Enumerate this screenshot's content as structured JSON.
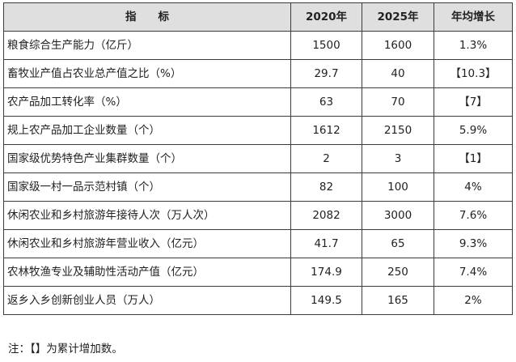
{
  "table": {
    "headers": [
      "指　　标",
      "2020年",
      "2025年",
      "年均增长"
    ],
    "rows": [
      [
        "粮食综合生产能力（亿斤）",
        "1500",
        "1600",
        "1.3%"
      ],
      [
        "畜牧业产值占农业总产值之比（%）",
        "29.7",
        "40",
        "【10.3】"
      ],
      [
        "农产品加工转化率（%）",
        "63",
        "70",
        "【7】"
      ],
      [
        "规上农产品加工企业数量（个）",
        "1612",
        "2150",
        "5.9%"
      ],
      [
        "国家级优势特色产业集群数量（个）",
        "2",
        "3",
        "【1】"
      ],
      [
        "国家级一村一品示范村镇（个）",
        "82",
        "100",
        "4%"
      ],
      [
        "休闲农业和乡村旅游年接待人次（万人次）",
        "2082",
        "3000",
        "7.6%"
      ],
      [
        "休闲农业和乡村旅游年营业收入（亿元）",
        "41.7",
        "65",
        "9.3%"
      ],
      [
        "农林牧渔专业及辅助性活动产值（亿元）",
        "174.9",
        "250",
        "7.4%"
      ],
      [
        "返乡入乡创新创业人员（万人）",
        "149.5",
        "165",
        "2%"
      ]
    ]
  },
  "note": "注：【】为累计增加数。"
}
